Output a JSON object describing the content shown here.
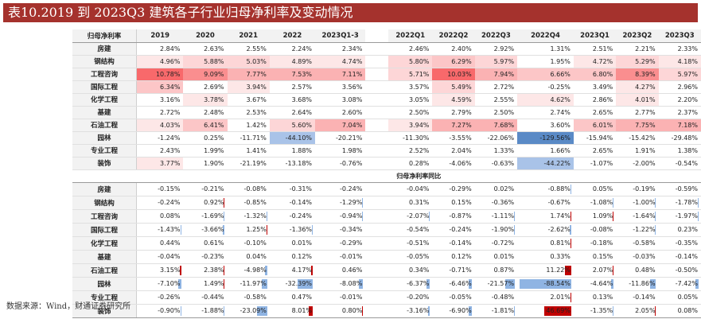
{
  "title": "表10.2019 到 2023Q3 建筑各子行业归母净利率及变动情况",
  "section1_header": "归母净利率",
  "section2_header": "归母净利率同比",
  "columns": [
    "2019",
    "2020",
    "2021",
    "2022",
    "2023Q1-3",
    "2022Q1",
    "2022Q2",
    "2022Q3",
    "2022Q4",
    "2023Q1",
    "2023Q2",
    "2023Q3"
  ],
  "margin_rows": [
    {
      "name": "房建",
      "values": [
        "2.84%",
        "2.63%",
        "2.55%",
        "2.24%",
        "2.34%",
        "2.46%",
        "2.40%",
        "2.92%",
        "1.31%",
        "2.51%",
        "2.21%",
        "2.33%"
      ]
    },
    {
      "name": "钢结构",
      "values": [
        "4.96%",
        "5.88%",
        "5.03%",
        "4.89%",
        "4.74%",
        "5.80%",
        "6.29%",
        "5.97%",
        "1.95%",
        "4.72%",
        "5.29%",
        "4.18%"
      ]
    },
    {
      "name": "工程咨询",
      "values": [
        "10.78%",
        "9.09%",
        "7.77%",
        "7.53%",
        "7.11%",
        "5.71%",
        "10.03%",
        "7.94%",
        "6.66%",
        "6.80%",
        "8.39%",
        "5.97%"
      ]
    },
    {
      "name": "国际工程",
      "values": [
        "6.34%",
        "2.69%",
        "3.94%",
        "2.57%",
        "3.56%",
        "3.57%",
        "5.49%",
        "2.72%",
        "-0.25%",
        "3.49%",
        "4.27%",
        "2.96%"
      ]
    },
    {
      "name": "化学工程",
      "values": [
        "3.16%",
        "3.78%",
        "3.67%",
        "3.68%",
        "3.08%",
        "3.05%",
        "4.59%",
        "2.55%",
        "4.62%",
        "2.86%",
        "4.01%",
        "2.20%"
      ]
    },
    {
      "name": "基建",
      "values": [
        "2.72%",
        "2.48%",
        "2.53%",
        "2.64%",
        "2.60%",
        "2.50%",
        "2.79%",
        "2.50%",
        "2.74%",
        "2.65%",
        "2.77%",
        "2.37%"
      ]
    },
    {
      "name": "石油工程",
      "values": [
        "4.03%",
        "6.41%",
        "1.42%",
        "5.60%",
        "7.04%",
        "3.94%",
        "7.27%",
        "7.68%",
        "3.60%",
        "6.01%",
        "7.75%",
        "7.18%"
      ]
    },
    {
      "name": "园林",
      "values": [
        "-1.24%",
        "0.25%",
        "-11.71%",
        "-44.10%",
        "-20.21%",
        "-11.30%",
        "-3.55%",
        "-22.06%",
        "-129.56%",
        "-15.94%",
        "-15.42%",
        "-29.48%"
      ]
    },
    {
      "name": "专业工程",
      "values": [
        "2.43%",
        "1.99%",
        "1.41%",
        "1.88%",
        "1.98%",
        "2.52%",
        "2.04%",
        "1.33%",
        "1.66%",
        "2.65%",
        "1.91%",
        "1.38%"
      ]
    },
    {
      "name": "装饰",
      "values": [
        "3.77%",
        "1.90%",
        "-21.19%",
        "-13.18%",
        "-0.76%",
        "0.28%",
        "-4.06%",
        "-0.63%",
        "-44.22%",
        "-1.07%",
        "-2.00%",
        "-0.54%"
      ]
    }
  ],
  "yoy_rows": [
    {
      "name": "房建",
      "values": [
        "-0.15%",
        "-0.21%",
        "-0.08%",
        "-0.31%",
        "-0.24%",
        "-0.04%",
        "-0.29%",
        "0.02%",
        "-0.88%",
        "0.05%",
        "-0.19%",
        "-0.59%"
      ]
    },
    {
      "name": "钢结构",
      "values": [
        "-0.24%",
        "0.92%",
        "-0.85%",
        "-0.14%",
        "-1.29%",
        "0.31%",
        "0.15%",
        "-0.36%",
        "-0.67%",
        "-1.08%",
        "-1.00%",
        "-1.78%"
      ]
    },
    {
      "name": "工程咨询",
      "values": [
        "0.08%",
        "-1.69%",
        "-1.32%",
        "-0.24%",
        "-0.94%",
        "-2.07%",
        "-0.87%",
        "-1.11%",
        "1.74%",
        "1.09%",
        "-1.64%",
        "-1.97%"
      ]
    },
    {
      "name": "国际工程",
      "values": [
        "-1.43%",
        "-3.66%",
        "1.25%",
        "-1.36%",
        "-0.34%",
        "-0.54%",
        "-0.24%",
        "-1.90%",
        "-2.62%",
        "-0.08%",
        "-1.22%",
        "0.23%"
      ]
    },
    {
      "name": "化学工程",
      "values": [
        "0.44%",
        "0.61%",
        "-0.10%",
        "0.01%",
        "-0.29%",
        "-0.51%",
        "-0.14%",
        "-0.72%",
        "0.81%",
        "-0.18%",
        "-0.58%",
        "-0.35%"
      ]
    },
    {
      "name": "基建",
      "values": [
        "-0.04%",
        "-0.23%",
        "0.04%",
        "0.12%",
        "-0.01%",
        "-0.05%",
        "0.12%",
        "0.01%",
        "0.33%",
        "0.15%",
        "-0.03%",
        "-0.14%"
      ]
    },
    {
      "name": "石油工程",
      "values": [
        "3.15%",
        "2.38%",
        "-4.98%",
        "4.17%",
        "0.46%",
        "0.34%",
        "-0.71%",
        "0.87%",
        "11.22%",
        "2.07%",
        "0.48%",
        "-0.50%"
      ]
    },
    {
      "name": "园林",
      "values": [
        "-7.10%",
        "1.49%",
        "-11.97%",
        "-32.39%",
        "-8.08%",
        "-6.37%",
        "-6.46%",
        "-21.57%",
        "-88.54%",
        "-4.64%",
        "-11.86%",
        "-7.42%"
      ]
    },
    {
      "name": "专业工程",
      "values": [
        "-0.26%",
        "-0.44%",
        "-0.58%",
        "0.47%",
        "-0.01%",
        "-0.20%",
        "-0.05%",
        "-0.48%",
        "2.01%",
        "0.13%",
        "-0.14%",
        "0.05%"
      ]
    },
    {
      "name": "装饰",
      "values": [
        "-0.90%",
        "-1.88%",
        "-23.09%",
        "8.01%",
        "0.80%",
        "-3.16%",
        "-6.90%",
        "-1.81%",
        "46.69%",
        "-1.35%",
        "2.05%",
        "0.08%"
      ]
    }
  ],
  "colors": {
    "title_bg": "#a5322d",
    "pos_bar": "#c00000",
    "neg_bar": "#8fb4e3",
    "heat_high": "#f8696b",
    "heat_neg": "#5a8ac6"
  },
  "source": "数据来源：Wind，财通证券研究所"
}
